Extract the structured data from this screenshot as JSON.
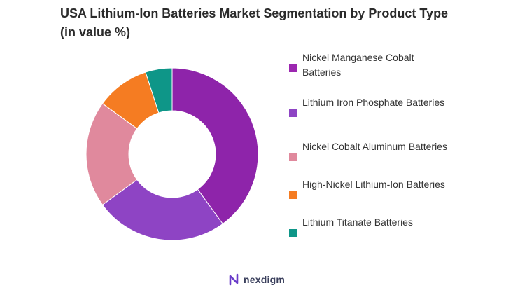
{
  "title": "USA Lithium-Ion Batteries Market Segmentation by Product Type (in value %)",
  "chart_data": {
    "type": "pie",
    "donut": true,
    "title": "USA Lithium-Ion Batteries Market Segmentation by Product Type (in value %)",
    "legend_position": "right",
    "categories": [
      "Nickel Manganese Cobalt Batteries",
      "Lithium Iron Phosphate Batteries",
      "Nickel Cobalt Aluminum Batteries",
      "High-Nickel Lithium-Ion Batteries",
      "Lithium Titanate Batteries"
    ],
    "values": [
      40,
      25,
      20,
      10,
      5
    ],
    "colors": [
      "#8e24aa",
      "#8e44c4",
      "#e0899d",
      "#f57c22",
      "#0e9688"
    ]
  },
  "legend": [
    {
      "label": "Nickel Manganese Cobalt Batteries",
      "color": "#9c27b0"
    },
    {
      "label": "Lithium Iron Phosphate Batteries",
      "color": "#8e44c4"
    },
    {
      "label": "Nickel Cobalt Aluminum Batteries",
      "color": "#e0899d"
    },
    {
      "label": "High-Nickel Lithium-Ion Batteries",
      "color": "#f57c22"
    },
    {
      "label": "Lithium Titanate Batteries",
      "color": "#0e9688"
    }
  ],
  "brand": {
    "name": "nexdigm",
    "logo_icon": "nexdigm-logo-icon",
    "color": "#6a3cc9"
  }
}
